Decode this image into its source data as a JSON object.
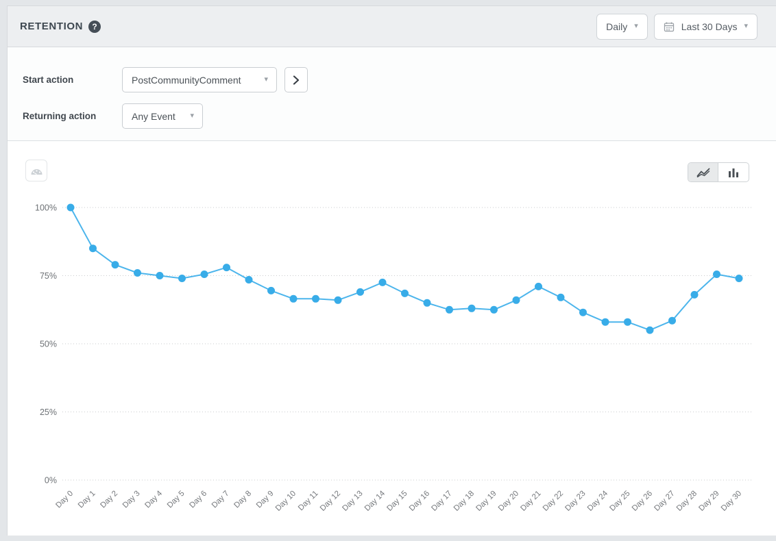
{
  "header": {
    "title": "RETENTION",
    "help_glyph": "?",
    "granularity": "Daily",
    "date_range": "Last 30 Days"
  },
  "controls": {
    "start_action_label": "Start action",
    "start_action_value": "PostCommunityComment",
    "returning_action_label": "Returning action",
    "returning_action_value": "Any Event"
  },
  "icons": {
    "chevron_down": "▾"
  },
  "colors": {
    "line": "#4cb5ec",
    "point": "#38ace8",
    "grid": "#c9cbcd",
    "accent_blue": "#3fb0e9"
  },
  "chart_data": {
    "type": "line",
    "title": "",
    "xlabel": "",
    "ylabel": "",
    "categories": [
      "Day 0",
      "Day 1",
      "Day 2",
      "Day 3",
      "Day 4",
      "Day 5",
      "Day 6",
      "Day 7",
      "Day 8",
      "Day 9",
      "Day 10",
      "Day 11",
      "Day 12",
      "Day 13",
      "Day 14",
      "Day 15",
      "Day 16",
      "Day 17",
      "Day 18",
      "Day 19",
      "Day 20",
      "Day 21",
      "Day 22",
      "Day 23",
      "Day 24",
      "Day 25",
      "Day 26",
      "Day 27",
      "Day 28",
      "Day 29",
      "Day 30"
    ],
    "values": [
      100,
      85,
      79,
      76,
      75,
      74,
      75.5,
      78,
      73.5,
      69.5,
      66.5,
      66.5,
      66,
      69,
      72.5,
      68.5,
      65,
      62.5,
      63,
      62.5,
      66,
      71,
      67,
      61.5,
      58,
      58,
      55,
      58.5,
      68,
      75.5,
      74
    ],
    "unit": "%",
    "ylim": [
      0,
      100
    ],
    "yticks": [
      0,
      25,
      50,
      75,
      100
    ],
    "ytick_labels": [
      "0%",
      "25%",
      "50%",
      "75%",
      "100%"
    ],
    "grid": "horizontal-dotted",
    "legend": "none"
  }
}
